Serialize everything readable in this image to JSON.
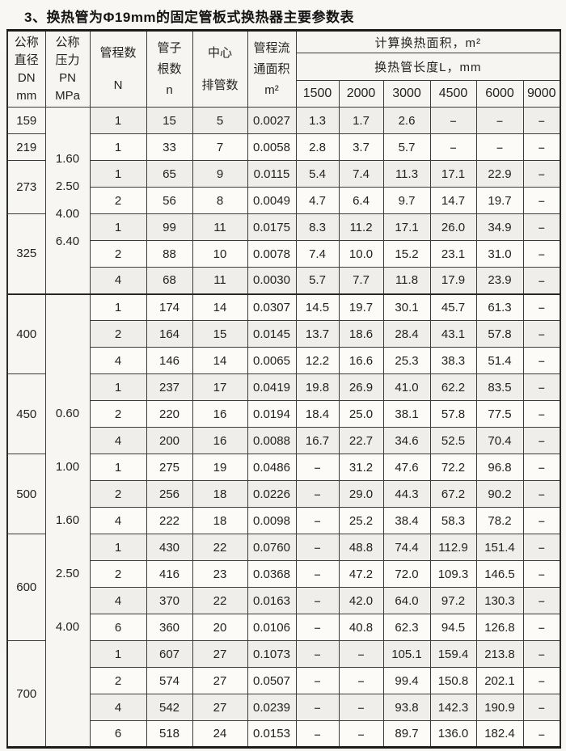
{
  "title": "3、换热管为Φ19mm的固定管板式换热器主要参数表",
  "colors": {
    "paper": "#f7f6f2",
    "ink": "#242220",
    "table_border": "#3d3b39"
  },
  "table": {
    "header": {
      "col_dn_lines": [
        "公称",
        "直径",
        "DN",
        "mm"
      ],
      "col_pn_lines": [
        "公称",
        "压力",
        "PN",
        "MPa"
      ],
      "col_passes_lines": [
        "管程数",
        "N"
      ],
      "col_tubes_lines": [
        "管子",
        "根数",
        "n"
      ],
      "col_center_lines": [
        "中心",
        "排管数"
      ],
      "col_flow_lines": [
        "管程流",
        "通面积",
        "m²"
      ],
      "area_group": "计算换热面积，m²",
      "length_group": "换热管长度L，mm",
      "lengths": [
        "1500",
        "2000",
        "3000",
        "4500",
        "6000",
        "9000"
      ]
    },
    "blocks": [
      {
        "pn_values": [
          "1.60",
          "2.50",
          "4.00",
          "6.40"
        ],
        "dn_groups": [
          {
            "dn": "159",
            "rows": [
              [
                "1",
                "15",
                "5",
                "0.0027",
                "1.3",
                "1.7",
                "2.6",
                "–",
                "–",
                "–"
              ]
            ]
          },
          {
            "dn": "219",
            "rows": [
              [
                "1",
                "33",
                "7",
                "0.0058",
                "2.8",
                "3.7",
                "5.7",
                "–",
                "–",
                "–"
              ]
            ]
          },
          {
            "dn": "273",
            "rows": [
              [
                "1",
                "65",
                "9",
                "0.0115",
                "5.4",
                "7.4",
                "11.3",
                "17.1",
                "22.9",
                "–"
              ],
              [
                "2",
                "56",
                "8",
                "0.0049",
                "4.7",
                "6.4",
                "9.7",
                "14.7",
                "19.7",
                "–"
              ]
            ]
          },
          {
            "dn": "325",
            "rows": [
              [
                "1",
                "99",
                "11",
                "0.0175",
                "8.3",
                "11.2",
                "17.1",
                "26.0",
                "34.9",
                "–"
              ],
              [
                "2",
                "88",
                "10",
                "0.0078",
                "7.4",
                "10.0",
                "15.2",
                "23.1",
                "31.0",
                "–"
              ],
              [
                "4",
                "68",
                "11",
                "0.0030",
                "5.7",
                "7.7",
                "11.8",
                "17.9",
                "23.9",
                "–"
              ]
            ]
          }
        ]
      },
      {
        "pn_values": [
          "0.60",
          "1.00",
          "1.60",
          "2.50",
          "4.00"
        ],
        "dn_groups": [
          {
            "dn": "400",
            "rows": [
              [
                "1",
                "174",
                "14",
                "0.0307",
                "14.5",
                "19.7",
                "30.1",
                "45.7",
                "61.3",
                "–"
              ],
              [
                "2",
                "164",
                "15",
                "0.0145",
                "13.7",
                "18.6",
                "28.4",
                "43.1",
                "57.8",
                "–"
              ],
              [
                "4",
                "146",
                "14",
                "0.0065",
                "12.2",
                "16.6",
                "25.3",
                "38.3",
                "51.4",
                "–"
              ]
            ]
          },
          {
            "dn": "450",
            "rows": [
              [
                "1",
                "237",
                "17",
                "0.0419",
                "19.8",
                "26.9",
                "41.0",
                "62.2",
                "83.5",
                "–"
              ],
              [
                "2",
                "220",
                "16",
                "0.0194",
                "18.4",
                "25.0",
                "38.1",
                "57.8",
                "77.5",
                "–"
              ],
              [
                "4",
                "200",
                "16",
                "0.0088",
                "16.7",
                "22.7",
                "34.6",
                "52.5",
                "70.4",
                "–"
              ]
            ]
          },
          {
            "dn": "500",
            "rows": [
              [
                "1",
                "275",
                "19",
                "0.0486",
                "–",
                "31.2",
                "47.6",
                "72.2",
                "96.8",
                "–"
              ],
              [
                "2",
                "256",
                "18",
                "0.0226",
                "–",
                "29.0",
                "44.3",
                "67.2",
                "90.2",
                "–"
              ],
              [
                "4",
                "222",
                "18",
                "0.0098",
                "–",
                "25.2",
                "38.4",
                "58.3",
                "78.2",
                "–"
              ]
            ]
          },
          {
            "dn": "600",
            "rows": [
              [
                "1",
                "430",
                "22",
                "0.0760",
                "–",
                "48.8",
                "74.4",
                "112.9",
                "151.4",
                "–"
              ],
              [
                "2",
                "416",
                "23",
                "0.0368",
                "–",
                "47.2",
                "72.0",
                "109.3",
                "146.5",
                "–"
              ],
              [
                "4",
                "370",
                "22",
                "0.0163",
                "–",
                "42.0",
                "64.0",
                "97.2",
                "130.3",
                "–"
              ],
              [
                "6",
                "360",
                "20",
                "0.0106",
                "–",
                "40.8",
                "62.3",
                "94.5",
                "126.8",
                "–"
              ]
            ]
          },
          {
            "dn": "700",
            "rows": [
              [
                "1",
                "607",
                "27",
                "0.1073",
                "–",
                "–",
                "105.1",
                "159.4",
                "213.8",
                "–"
              ],
              [
                "2",
                "574",
                "27",
                "0.0507",
                "–",
                "–",
                "99.4",
                "150.8",
                "202.1",
                "–"
              ],
              [
                "4",
                "542",
                "27",
                "0.0239",
                "–",
                "–",
                "93.8",
                "142.3",
                "190.9",
                "–"
              ],
              [
                "6",
                "518",
                "24",
                "0.0153",
                "–",
                "–",
                "89.7",
                "136.0",
                "182.4",
                "–"
              ]
            ]
          }
        ]
      }
    ]
  }
}
